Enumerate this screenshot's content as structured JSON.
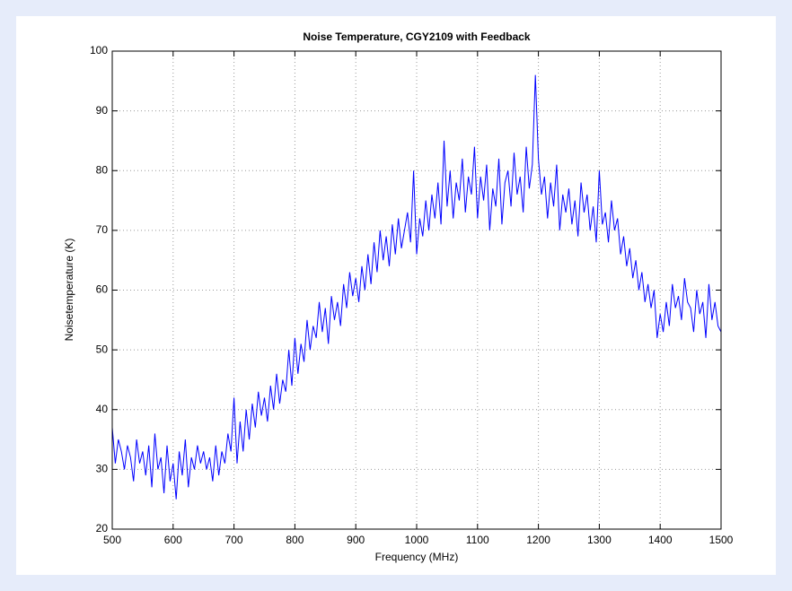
{
  "chart_data": {
    "type": "line",
    "title": "Noise Temperature, CGY2109 with Feedback",
    "xlabel": "Frequency (MHz)",
    "ylabel": "Noisetemperature (K)",
    "x": [
      500,
      505,
      510,
      515,
      520,
      525,
      530,
      535,
      540,
      545,
      550,
      555,
      560,
      565,
      570,
      575,
      580,
      585,
      590,
      595,
      600,
      605,
      610,
      615,
      620,
      625,
      630,
      635,
      640,
      645,
      650,
      655,
      660,
      665,
      670,
      675,
      680,
      685,
      690,
      695,
      700,
      705,
      710,
      715,
      720,
      725,
      730,
      735,
      740,
      745,
      750,
      755,
      760,
      765,
      770,
      775,
      780,
      785,
      790,
      795,
      800,
      805,
      810,
      815,
      820,
      825,
      830,
      835,
      840,
      845,
      850,
      855,
      860,
      865,
      870,
      875,
      880,
      885,
      890,
      895,
      900,
      905,
      910,
      915,
      920,
      925,
      930,
      935,
      940,
      945,
      950,
      955,
      960,
      965,
      970,
      975,
      980,
      985,
      990,
      995,
      1000,
      1005,
      1010,
      1015,
      1020,
      1025,
      1030,
      1035,
      1040,
      1045,
      1050,
      1055,
      1060,
      1065,
      1070,
      1075,
      1080,
      1085,
      1090,
      1095,
      1100,
      1105,
      1110,
      1115,
      1120,
      1125,
      1130,
      1135,
      1140,
      1145,
      1150,
      1155,
      1160,
      1165,
      1170,
      1175,
      1180,
      1185,
      1190,
      1195,
      1200,
      1205,
      1210,
      1215,
      1220,
      1225,
      1230,
      1235,
      1240,
      1245,
      1250,
      1255,
      1260,
      1265,
      1270,
      1275,
      1280,
      1285,
      1290,
      1295,
      1300,
      1305,
      1310,
      1315,
      1320,
      1325,
      1330,
      1335,
      1340,
      1345,
      1350,
      1355,
      1360,
      1365,
      1370,
      1375,
      1380,
      1385,
      1390,
      1395,
      1400,
      1405,
      1410,
      1415,
      1420,
      1425,
      1430,
      1435,
      1440,
      1445,
      1450,
      1455,
      1460,
      1465,
      1470,
      1475,
      1480,
      1485,
      1490,
      1495,
      1500
    ],
    "series": [
      {
        "color": "#0000ff",
        "values": [
          37,
          31,
          35,
          33,
          30,
          34,
          32,
          28,
          35,
          31,
          33,
          29,
          34,
          27,
          36,
          30,
          32,
          26,
          34,
          28,
          31,
          25,
          33,
          29,
          35,
          27,
          32,
          30,
          34,
          31,
          33,
          30,
          32,
          28,
          34,
          29,
          33,
          31,
          36,
          33,
          42,
          31,
          38,
          33,
          40,
          35,
          41,
          37,
          43,
          39,
          42,
          38,
          44,
          40,
          46,
          41,
          45,
          43,
          50,
          44,
          52,
          46,
          51,
          48,
          55,
          50,
          54,
          52,
          58,
          53,
          57,
          51,
          59,
          55,
          58,
          54,
          61,
          57,
          63,
          59,
          62,
          58,
          64,
          60,
          66,
          61,
          68,
          63,
          70,
          65,
          69,
          64,
          71,
          66,
          72,
          67,
          70,
          73,
          68,
          80,
          66,
          72,
          69,
          75,
          70,
          76,
          72,
          78,
          71,
          85,
          74,
          80,
          72,
          78,
          75,
          82,
          73,
          79,
          76,
          84,
          72,
          79,
          75,
          81,
          70,
          77,
          74,
          82,
          71,
          78,
          80,
          74,
          83,
          76,
          79,
          73,
          84,
          77,
          81,
          96,
          82,
          76,
          79,
          72,
          78,
          74,
          81,
          70,
          76,
          73,
          77,
          71,
          75,
          69,
          78,
          73,
          76,
          70,
          74,
          68,
          80,
          71,
          73,
          68,
          75,
          70,
          72,
          66,
          69,
          64,
          67,
          62,
          65,
          60,
          63,
          58,
          61,
          57,
          60,
          52,
          56,
          53,
          58,
          54,
          61,
          57,
          59,
          55,
          62,
          58,
          57,
          53,
          60,
          56,
          58,
          52,
          61,
          55,
          58,
          54,
          53
        ]
      }
    ],
    "xlim": [
      500,
      1500
    ],
    "xticks": [
      500,
      600,
      700,
      800,
      900,
      1000,
      1100,
      1200,
      1300,
      1400,
      1500
    ],
    "ylim": [
      20,
      100
    ],
    "yticks": [
      20,
      30,
      40,
      50,
      60,
      70,
      80,
      90,
      100
    ],
    "grid": true
  }
}
